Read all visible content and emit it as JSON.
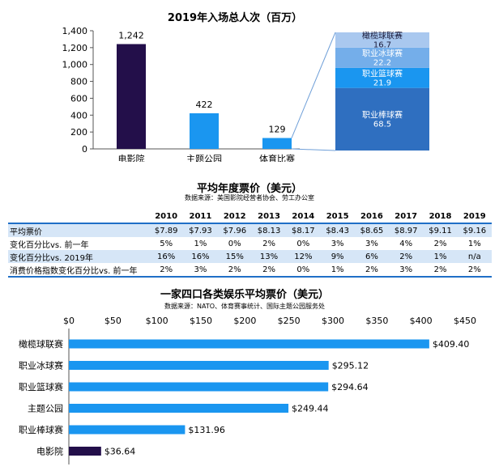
{
  "chart_data": [
    {
      "type": "bar",
      "title": "2019年入场总人次（百万）",
      "categories": [
        "电影院",
        "主题公园",
        "体育比赛"
      ],
      "values": [
        1242,
        422,
        129
      ],
      "value_labels": [
        "1,242",
        "422",
        "129"
      ],
      "ylim": [
        0,
        1400
      ],
      "yticks": [
        0,
        200,
        400,
        600,
        800,
        1000,
        1200,
        1400
      ],
      "ytick_labels": [
        "0",
        "200",
        "400",
        "600",
        "800",
        "1,000",
        "1,200",
        "1,400"
      ],
      "colors": [
        "#230f4a",
        "#1a96f0",
        "#1a96f0"
      ],
      "grid": false
    },
    {
      "type": "bar",
      "subtype": "stacked-breakdown",
      "breakdown_of": "体育比赛",
      "categories": [
        "职业棒球赛",
        "职业篮球赛",
        "职业冰球赛",
        "橄榄球联赛"
      ],
      "values": [
        68.5,
        21.9,
        22.2,
        16.7
      ],
      "value_labels": [
        "68.5",
        "21.9",
        "22.2",
        "16.7"
      ],
      "colors": [
        "#2f6fc0",
        "#1a96f0",
        "#74aeea",
        "#a9c8ef"
      ]
    },
    {
      "type": "table",
      "title": "平均年度票价（美元）",
      "subtitle": "数据来源：美国影院经营者协会、劳工办公室",
      "columns": [
        "",
        "2010",
        "2011",
        "2012",
        "2013",
        "2014",
        "2015",
        "2016",
        "2017",
        "2018",
        "2019"
      ],
      "rows": [
        {
          "label": "平均票价",
          "values": [
            "$7.89",
            "$7.93",
            "$7.96",
            "$8.13",
            "$8.17",
            "$8.43",
            "$8.65",
            "$8.97",
            "$9.11",
            "$9.16"
          ],
          "highlight": true
        },
        {
          "label": "变化百分比vs. 前一年",
          "values": [
            "5%",
            "1%",
            "0%",
            "2%",
            "0%",
            "3%",
            "3%",
            "4%",
            "2%",
            "1%"
          ],
          "highlight": false
        },
        {
          "label": "变化百分比vs. 2019年",
          "values": [
            "16%",
            "16%",
            "15%",
            "13%",
            "12%",
            "9%",
            "6%",
            "2%",
            "1%",
            "n/a"
          ],
          "highlight": true
        },
        {
          "label": "消费价格指数变化百分比vs. 前一年",
          "values": [
            "2%",
            "3%",
            "2%",
            "2%",
            "0%",
            "1%",
            "2%",
            "3%",
            "2%",
            "2%"
          ],
          "highlight": false
        }
      ]
    },
    {
      "type": "bar",
      "orientation": "horizontal",
      "title": "一家四口各类娱乐平均票价（美元）",
      "subtitle": "数据来源：NATO、体育赛事统计、国际主题公园服务处",
      "categories": [
        "橄榄球联赛",
        "职业冰球赛",
        "职业篮球赛",
        "主题公园",
        "职业棒球赛",
        "电影院"
      ],
      "values": [
        409.4,
        295.12,
        294.64,
        249.44,
        131.96,
        36.64
      ],
      "value_labels": [
        "$409.40",
        "$295.12",
        "$294.64",
        "$249.44",
        "$131.96",
        "$36.64"
      ],
      "xlim": [
        0,
        450
      ],
      "xticks": [
        0,
        50,
        100,
        150,
        200,
        250,
        300,
        350,
        400,
        450
      ],
      "xtick_labels": [
        "$0",
        "$50",
        "$100",
        "$150",
        "$200",
        "$250",
        "$300",
        "$350",
        "$400",
        "$450"
      ],
      "xaxis_position": "top",
      "colors": [
        "#1a96f0",
        "#1a96f0",
        "#1a96f0",
        "#1a96f0",
        "#1a96f0",
        "#230f4a"
      ],
      "grid": false
    }
  ]
}
